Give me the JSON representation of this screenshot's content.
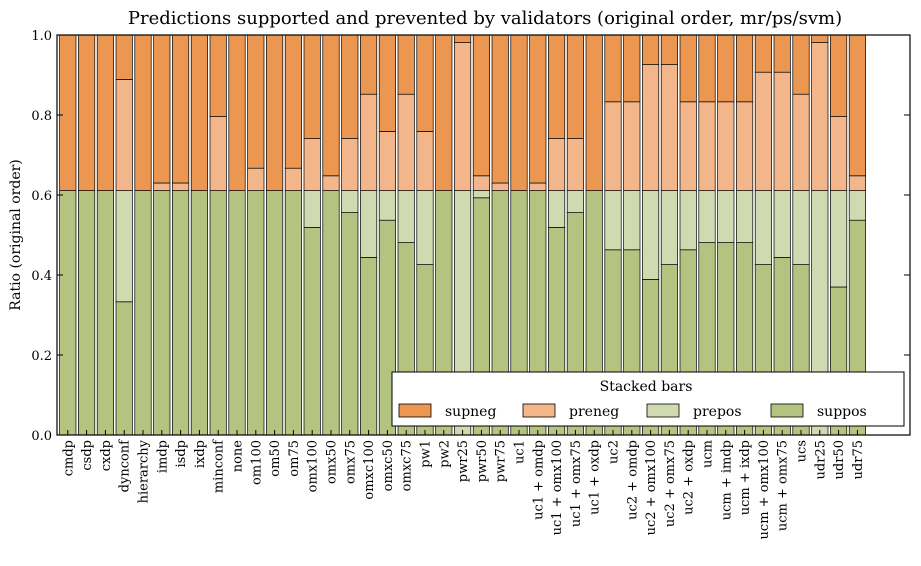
{
  "chart_data": {
    "type": "bar",
    "stacked": true,
    "title": "Predictions supported and prevented by validators (original order, mr/ps/svm)",
    "xlabel": "",
    "ylabel": "Ratio (original order)",
    "ylim": [
      0,
      1.0
    ],
    "yticks": [
      "0.0",
      "0.2",
      "0.4",
      "0.6",
      "0.8",
      "1.0"
    ],
    "grid": false,
    "legend": {
      "title": "Stacked bars",
      "placement": "lower-right",
      "ncol": 4
    },
    "categories": [
      "cmdp",
      "csdp",
      "cxdp",
      "dynconf",
      "hierarchy",
      "imdp",
      "isdp",
      "ixdp",
      "minconf",
      "none",
      "om100",
      "om50",
      "om75",
      "omx100",
      "omx50",
      "omx75",
      "omxc100",
      "omxc50",
      "omxc75",
      "pw1",
      "pw2",
      "pwr25",
      "pwr50",
      "pwr75",
      "uc1",
      "uc1 + omdp",
      "uc1 + omx100",
      "uc1 + omx75",
      "uc1 + oxdp",
      "uc2",
      "uc2 + omdp",
      "uc2 + omx100",
      "uc2 + omx75",
      "uc2 + oxdp",
      "ucm",
      "ucm + imdp",
      "ucm + ixdp",
      "ucm + omx100",
      "ucm + omx75",
      "ucs",
      "udr25",
      "udr50",
      "udr75"
    ],
    "series": [
      {
        "name": "suppos",
        "color": "#b5c380",
        "values": [
          0.611,
          0.611,
          0.611,
          0.333,
          0.611,
          0.611,
          0.611,
          0.611,
          0.611,
          0.611,
          0.611,
          0.611,
          0.611,
          0.519,
          0.611,
          0.556,
          0.444,
          0.537,
          0.481,
          0.426,
          0.611,
          0.0,
          0.593,
          0.611,
          0.611,
          0.611,
          0.519,
          0.556,
          0.611,
          0.463,
          0.463,
          0.389,
          0.426,
          0.463,
          0.481,
          0.481,
          0.481,
          0.426,
          0.444,
          0.426,
          0.0,
          0.37,
          0.537
        ]
      },
      {
        "name": "prepos",
        "color": "#cfdab0",
        "values": [
          0.0,
          0.0,
          0.0,
          0.278,
          0.0,
          0.0,
          0.0,
          0.0,
          0.0,
          0.0,
          0.0,
          0.0,
          0.0,
          0.092,
          0.0,
          0.055,
          0.167,
          0.074,
          0.13,
          0.185,
          0.0,
          0.611,
          0.018,
          0.0,
          0.0,
          0.0,
          0.092,
          0.055,
          0.0,
          0.148,
          0.148,
          0.222,
          0.185,
          0.148,
          0.13,
          0.13,
          0.13,
          0.185,
          0.167,
          0.185,
          0.611,
          0.241,
          0.074
        ]
      },
      {
        "name": "preneg",
        "color": "#f3b68a",
        "values": [
          0.0,
          0.0,
          0.0,
          0.278,
          0.0,
          0.019,
          0.019,
          0.0,
          0.185,
          0.0,
          0.056,
          0.0,
          0.056,
          0.13,
          0.037,
          0.13,
          0.241,
          0.148,
          0.241,
          0.148,
          0.0,
          0.37,
          0.037,
          0.019,
          0.0,
          0.019,
          0.13,
          0.13,
          0.0,
          0.222,
          0.222,
          0.315,
          0.315,
          0.222,
          0.222,
          0.222,
          0.222,
          0.296,
          0.296,
          0.241,
          0.37,
          0.185,
          0.037
        ]
      },
      {
        "name": "supneg",
        "color": "#eb9751",
        "values": [
          0.389,
          0.389,
          0.389,
          0.111,
          0.389,
          0.37,
          0.37,
          0.389,
          0.204,
          0.389,
          0.333,
          0.389,
          0.333,
          0.259,
          0.352,
          0.259,
          0.148,
          0.241,
          0.148,
          0.241,
          0.389,
          0.019,
          0.352,
          0.37,
          0.389,
          0.37,
          0.259,
          0.259,
          0.389,
          0.167,
          0.167,
          0.074,
          0.074,
          0.167,
          0.167,
          0.167,
          0.167,
          0.093,
          0.093,
          0.148,
          0.019,
          0.204,
          0.352
        ]
      }
    ]
  }
}
